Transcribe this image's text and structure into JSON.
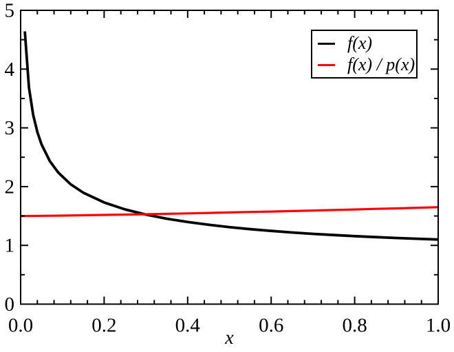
{
  "chart_data": {
    "type": "line",
    "title": "",
    "xlabel": "x",
    "ylabel": "",
    "xlim": [
      0.0,
      1.0
    ],
    "ylim": [
      0,
      5
    ],
    "grid": false,
    "background": "#ffffff",
    "frame_color": "#000000",
    "x_ticks": {
      "values": [
        0,
        0.2,
        0.4,
        0.6,
        0.8,
        1.0
      ],
      "labels": [
        "0.0",
        "0.2",
        "0.4",
        "0.6",
        "0.8",
        "1.0"
      ],
      "minor_step": 0.04
    },
    "y_ticks": {
      "values": [
        0,
        1,
        2,
        3,
        4,
        5
      ],
      "labels": [
        "0",
        "1",
        "2",
        "3",
        "4",
        "5"
      ],
      "minor_step": 0.5
    },
    "legend": {
      "position": "top-right",
      "border_color": "#000000",
      "background": "#ffffff"
    },
    "series": [
      {
        "name": "f(x)",
        "color": "#000000",
        "line_width": 3.8,
        "x": [
          0.01,
          0.02,
          0.03,
          0.04,
          0.05,
          0.07,
          0.09,
          0.12,
          0.15,
          0.2,
          0.25,
          0.3,
          0.35,
          0.4,
          0.45,
          0.5,
          0.55,
          0.6,
          0.65,
          0.7,
          0.75,
          0.8,
          0.85,
          0.9,
          0.95,
          1.0
        ],
        "y": [
          4.643,
          3.686,
          3.221,
          2.928,
          2.719,
          2.433,
          2.24,
          2.039,
          1.897,
          1.73,
          1.612,
          1.524,
          1.454,
          1.397,
          1.35,
          1.31,
          1.276,
          1.246,
          1.219,
          1.196,
          1.176,
          1.157,
          1.141,
          1.126,
          1.112,
          1.1
        ]
      },
      {
        "name": "f(x) / p(x)",
        "color": "#ff0000",
        "line_width": 3.2,
        "x": [
          0,
          0.05,
          0.1,
          0.15,
          0.2,
          0.25,
          0.3,
          0.35,
          0.4,
          0.45,
          0.5,
          0.55,
          0.6,
          0.65,
          0.7,
          0.75,
          0.8,
          0.85,
          0.9,
          0.95,
          1.0
        ],
        "y": [
          1.5,
          1.503,
          1.507,
          1.512,
          1.518,
          1.524,
          1.53,
          1.537,
          1.544,
          1.552,
          1.56,
          1.568,
          1.576,
          1.584,
          1.593,
          1.602,
          1.611,
          1.621,
          1.63,
          1.64,
          1.65
        ]
      }
    ],
    "annotations": {
      "crossing_point_x": 0.3,
      "crossing_point_y": 1.52
    }
  }
}
